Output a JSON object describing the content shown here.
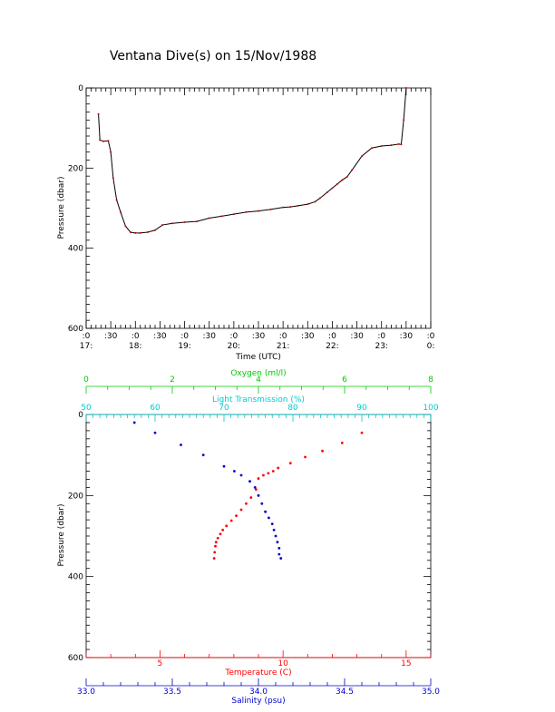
{
  "title": "Ventana Dive(s) on 15/Nov/1988",
  "colors": {
    "axis": "#000000",
    "trace_line": "#000000",
    "trace_points": "#cc0000",
    "oxygen": "#00cc00",
    "light": "#00cccc",
    "temperature": "#ff0000",
    "salinity": "#0000cc"
  },
  "chart_data": [
    {
      "type": "line",
      "title": "Ventana Dive(s) on 15/Nov/1988",
      "xlabel": "Time (UTC)",
      "ylabel": "Pressure (dbar)",
      "xlim": [
        17.0,
        24.0
      ],
      "ylim": [
        600,
        0
      ],
      "y_reversed": true,
      "grid": false,
      "x_tick_labels_top": [
        ":0",
        ":30",
        ":0",
        ":30",
        ":0",
        ":30",
        ":0",
        ":30",
        ":0",
        ":30",
        ":0",
        ":30",
        ":0",
        ":30",
        ":0"
      ],
      "x_tick_labels_bottom": [
        "17:",
        "18:",
        "19:",
        "20:",
        "21:",
        "22:",
        "23:",
        "0:"
      ],
      "y_tick_labels": [
        "0",
        "200",
        "400",
        "600"
      ],
      "x": [
        17.25,
        17.28,
        17.35,
        17.45,
        17.5,
        17.55,
        17.62,
        17.7,
        17.8,
        17.9,
        18.0,
        18.1,
        18.25,
        18.4,
        18.55,
        18.75,
        19.0,
        19.25,
        19.5,
        19.75,
        20.0,
        20.25,
        20.5,
        20.75,
        21.0,
        21.15,
        21.3,
        21.5,
        21.65,
        21.75,
        21.9,
        22.0,
        22.1,
        22.2,
        22.3,
        22.4,
        22.6,
        22.8,
        23.0,
        23.2,
        23.35,
        23.4,
        23.45,
        23.5
      ],
      "y": [
        65,
        130,
        133,
        132,
        160,
        225,
        280,
        310,
        345,
        360,
        362,
        362,
        360,
        355,
        342,
        338,
        335,
        333,
        325,
        320,
        315,
        310,
        307,
        303,
        298,
        297,
        294,
        290,
        284,
        275,
        260,
        250,
        240,
        230,
        222,
        205,
        170,
        150,
        145,
        143,
        140,
        141,
        80,
        0
      ]
    },
    {
      "type": "scatter",
      "ylabel": "Pressure (dbar)",
      "ylim": [
        600,
        0
      ],
      "y_reversed": true,
      "grid": false,
      "y_tick_labels": [
        "0",
        "200",
        "400",
        "600"
      ],
      "axes": {
        "oxygen": {
          "label": "Oxygen (ml/l)",
          "range": [
            0,
            8
          ],
          "ticks": [
            "0",
            "2",
            "4",
            "6",
            "8"
          ],
          "position": "top-outer"
        },
        "light_transmission": {
          "label": "Light Transmission (%)",
          "range": [
            50,
            100
          ],
          "ticks": [
            "50",
            "60",
            "70",
            "80",
            "90",
            "100"
          ],
          "position": "top-inner"
        },
        "temperature": {
          "label": "Temperature (C)",
          "range": [
            2.0,
            16.0
          ],
          "ticks": [
            "5",
            "10",
            "15"
          ],
          "position": "bottom-inner"
        },
        "salinity": {
          "label": "Salinity (psu)",
          "range": [
            33.0,
            35.0
          ],
          "ticks": [
            "33.0",
            "33.5",
            "34.0",
            "34.5",
            "35.0"
          ],
          "position": "bottom-outer"
        }
      },
      "series": [
        {
          "name": "Temperature (C)",
          "axis": "temperature",
          "x": [
            13.2,
            12.4,
            11.6,
            10.9,
            10.3,
            9.8,
            9.6,
            9.4,
            9.2,
            9.0,
            8.9,
            8.7,
            8.5,
            8.3,
            8.1,
            7.9,
            7.7,
            7.55,
            7.45,
            7.35,
            7.28,
            7.25,
            7.22,
            7.2
          ],
          "y": [
            45,
            70,
            90,
            105,
            120,
            132,
            140,
            145,
            150,
            158,
            185,
            205,
            220,
            235,
            250,
            262,
            275,
            285,
            295,
            305,
            315,
            325,
            340,
            355
          ]
        },
        {
          "name": "Salinity (psu)",
          "axis": "salinity",
          "x": [
            33.28,
            33.4,
            33.55,
            33.68,
            33.8,
            33.86,
            33.9,
            33.95,
            33.98,
            34.0,
            34.02,
            34.04,
            34.06,
            34.08,
            34.09,
            34.1,
            34.11,
            34.12,
            34.12,
            34.13
          ],
          "y": [
            20,
            45,
            75,
            100,
            128,
            140,
            150,
            165,
            180,
            200,
            220,
            240,
            255,
            270,
            285,
            300,
            315,
            330,
            345,
            355
          ]
        }
      ]
    }
  ]
}
